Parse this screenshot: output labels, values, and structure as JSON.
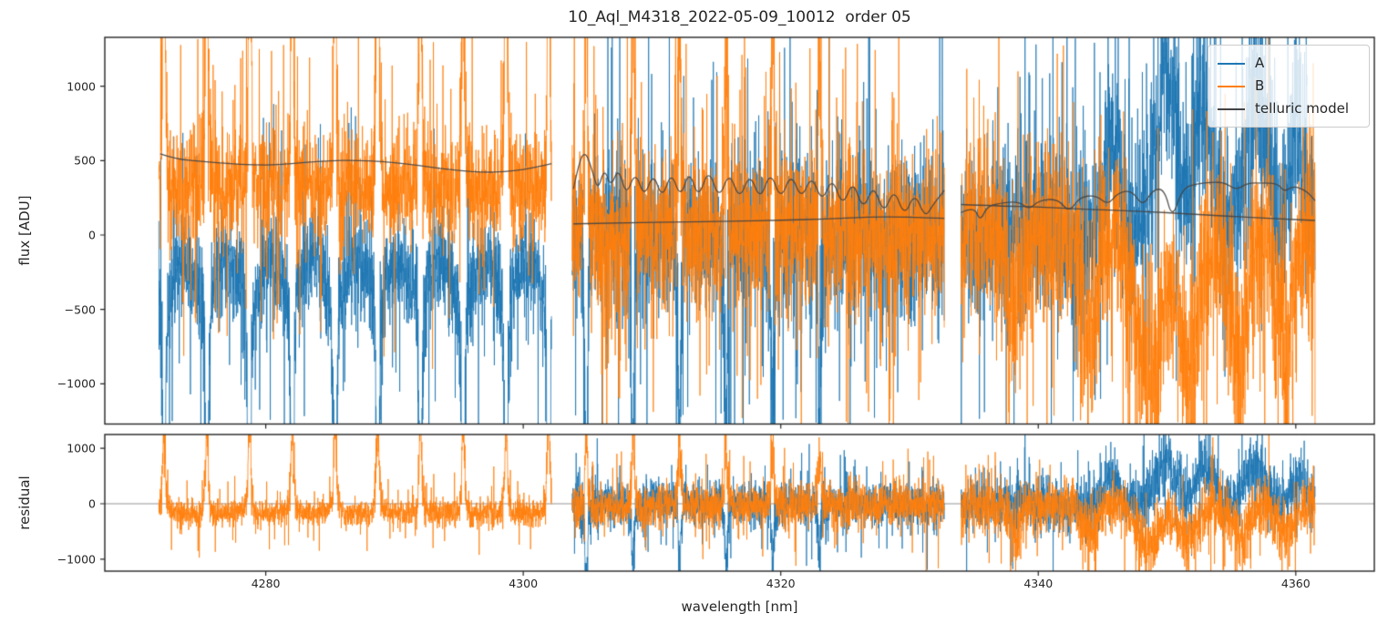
{
  "colors": {
    "A": "#1f77b4",
    "B": "#ff7f0e",
    "telluric": "#444444",
    "zero_line": "#888888",
    "axis": "#262626",
    "background": "#ffffff"
  },
  "legend": {
    "entries": [
      {
        "label": "A",
        "color_key": "A"
      },
      {
        "label": "B",
        "color_key": "B"
      },
      {
        "label": "telluric model",
        "color_key": "telluric"
      }
    ]
  },
  "chart_data": {
    "type": "line",
    "title": "10_Aql_M4318_2022-05-09_10012  order 05",
    "xlabel": "wavelength [nm]",
    "xlim": [
      4267.5,
      4366.1
    ],
    "x_ticks": [
      4280,
      4300,
      4320,
      4340,
      4360
    ],
    "grid": false,
    "legend_position": "upper right",
    "panels": [
      {
        "name": "flux",
        "ylabel": "flux [ADU]",
        "ylim": [
          -1270,
          1328
        ],
        "yticks": [
          {
            "v": 1000,
            "label": "1000"
          },
          {
            "v": 500,
            "label": "500"
          },
          {
            "v": 0,
            "label": "0"
          },
          {
            "v": -500,
            "label": "−500"
          },
          {
            "v": -1000,
            "label": "−1000"
          }
        ]
      },
      {
        "name": "residual",
        "ylabel": "residual",
        "ylim": [
          -1215,
          1248
        ],
        "yticks": [
          {
            "v": 1000,
            "label": "1000"
          },
          {
            "v": 0,
            "label": "0"
          },
          {
            "v": -1000,
            "label": "−1000"
          }
        ],
        "zero_line": true
      }
    ],
    "series": [
      {
        "name": "A",
        "color_key": "A",
        "kind": "noisy spectrum"
      },
      {
        "name": "B",
        "color_key": "B",
        "kind": "noisy spectrum"
      },
      {
        "name": "telluric model",
        "color_key": "telluric",
        "kind": "smooth model"
      }
    ],
    "segments": [
      {
        "x_range": [
          4271.7,
          4302.2
        ],
        "note": "emission comb: B spikes up (clipped), A spikes down; single telluric curve ~420-545 ADU; residuals only for B"
      },
      {
        "x_range": [
          4303.8,
          4332.7
        ],
        "note": "A and B overlap around 0; comb fades after ~4324; two telluric curves (oscillating upper, flat lower ~80-120)"
      },
      {
        "x_range": [
          4334.0,
          4361.5
        ],
        "note": "A and B overlap; broad blue positive bursts ~4346-4361, orange negative dips ~4338-4359; two telluric curves (notched rising upper, declining lower)"
      }
    ],
    "telluric_model": {
      "segment_1": [
        [
          4271.8,
          545
        ],
        [
          4273,
          510
        ],
        [
          4275,
          494
        ],
        [
          4277,
          480
        ],
        [
          4279,
          471
        ],
        [
          4281,
          471
        ],
        [
          4283,
          487
        ],
        [
          4285,
          500
        ],
        [
          4287,
          502
        ],
        [
          4289,
          494
        ],
        [
          4291,
          478
        ],
        [
          4293,
          454
        ],
        [
          4295,
          432
        ],
        [
          4297,
          421
        ],
        [
          4298.5,
          424
        ],
        [
          4300,
          440
        ],
        [
          4301.3,
          462
        ],
        [
          4302.2,
          480
        ]
      ],
      "segment_2_upper": [
        [
          4303.9,
          310
        ],
        [
          4304.4,
          520
        ],
        [
          4304.9,
          555
        ],
        [
          4305.4,
          420
        ],
        [
          4305.8,
          300
        ],
        [
          4306.3,
          450
        ],
        [
          4306.8,
          320
        ],
        [
          4307.4,
          455
        ],
        [
          4308,
          260
        ],
        [
          4308.7,
          430
        ],
        [
          4309.4,
          250
        ],
        [
          4310.1,
          420
        ],
        [
          4310.8,
          240
        ],
        [
          4311.5,
          430
        ],
        [
          4312.2,
          245
        ],
        [
          4312.9,
          438
        ],
        [
          4313.6,
          240
        ],
        [
          4314.4,
          452
        ],
        [
          4315.2,
          235
        ],
        [
          4316,
          430
        ],
        [
          4316.8,
          230
        ],
        [
          4317.6,
          420
        ],
        [
          4318.4,
          228
        ],
        [
          4319.2,
          434
        ],
        [
          4320,
          230
        ],
        [
          4320.8,
          420
        ],
        [
          4321.6,
          235
        ],
        [
          4322.4,
          408
        ],
        [
          4323.2,
          215
        ],
        [
          4324,
          393
        ],
        [
          4324.8,
          185
        ],
        [
          4325.6,
          373
        ],
        [
          4326.4,
          160
        ],
        [
          4327.2,
          345
        ],
        [
          4328,
          135
        ],
        [
          4328.8,
          318
        ],
        [
          4329.6,
          120
        ],
        [
          4330.4,
          288
        ],
        [
          4331.2,
          115
        ],
        [
          4331.8,
          200
        ],
        [
          4332.3,
          255
        ],
        [
          4332.7,
          300
        ]
      ],
      "segment_2_lower": [
        [
          4303.9,
          75
        ],
        [
          4308,
          82
        ],
        [
          4312,
          88
        ],
        [
          4316,
          92
        ],
        [
          4320,
          98
        ],
        [
          4324,
          110
        ],
        [
          4327,
          122
        ],
        [
          4330,
          120
        ],
        [
          4332.7,
          112
        ]
      ],
      "segment_3_upper": [
        [
          4334,
          150
        ],
        [
          4335,
          195
        ],
        [
          4335.5,
          90
        ],
        [
          4336,
          190
        ],
        [
          4337,
          215
        ],
        [
          4338.5,
          225
        ],
        [
          4339.3,
          170
        ],
        [
          4340,
          230
        ],
        [
          4341.5,
          245
        ],
        [
          4342.4,
          150
        ],
        [
          4343.2,
          255
        ],
        [
          4344.5,
          268
        ],
        [
          4345.4,
          200
        ],
        [
          4346.2,
          285
        ],
        [
          4347.3,
          300
        ],
        [
          4348.1,
          190
        ],
        [
          4348.9,
          305
        ],
        [
          4349.8,
          310
        ],
        [
          4350.4,
          105
        ],
        [
          4351.2,
          315
        ],
        [
          4352.3,
          345
        ],
        [
          4353.5,
          355
        ],
        [
          4354.5,
          352
        ],
        [
          4355.4,
          300
        ],
        [
          4356.2,
          350
        ],
        [
          4357.5,
          350
        ],
        [
          4358.6,
          345
        ],
        [
          4359.1,
          290
        ],
        [
          4359.8,
          330
        ],
        [
          4360.8,
          300
        ],
        [
          4361.5,
          230
        ]
      ],
      "segment_3_lower": [
        [
          4334,
          205
        ],
        [
          4337,
          195
        ],
        [
          4340,
          188
        ],
        [
          4344,
          172
        ],
        [
          4348,
          160
        ],
        [
          4352,
          140
        ],
        [
          4356,
          120
        ],
        [
          4359,
          107
        ],
        [
          4361.5,
          98
        ]
      ]
    },
    "noise_model": {
      "note": "A and B are dense photon-noise spectra; exact samples are stochastic. Parameters below reproduce the visible envelopes, comb peaks and bursts.",
      "seed": 7,
      "dx": 0.014,
      "segments": [
        {
          "x_range": [
            4271.7,
            4302.2
          ],
          "comb": {
            "start": 4272.1,
            "period": 3.32,
            "amps": [
              1600,
              1600,
              1600,
              1600,
              1600,
              1600,
              1600,
              1600,
              1600,
              1600
            ],
            "w": 0.13,
            "boost": 650,
            "bw": 0.3,
            "sign_A": -1,
            "sign_B": 1,
            "amp_scale_A": 1.1,
            "resid_scale": 0.78
          },
          "main": {
            "A": {
              "base": -380,
              "bulge": 200,
              "std": 165,
              "tail_p": 0.05,
              "tail_s": 450
            },
            "B": {
              "base": 250,
              "bulge": 90,
              "std": 175,
              "tail_p": 0.05,
              "tail_s": 430
            }
          },
          "resid": {
            "B": {
              "base": -165,
              "std": 120,
              "tail_p": 0.04,
              "tail_s": 300
            }
          }
        },
        {
          "x_range": [
            4303.8,
            4332.7
          ],
          "comb": {
            "start": 4304.9,
            "period": 3.62,
            "amps": [
              1500,
              1350,
              1250,
              1150,
              1000,
              850
            ],
            "w": 0.12,
            "boost": 520,
            "bw": 0.3,
            "sign_A": -1,
            "sign_B": 1,
            "resid_scale": 0.75
          },
          "main": {
            "A": {
              "base": 10,
              "std": 265,
              "tail_p": 0.07,
              "tail_s": 540
            },
            "B": {
              "base": -10,
              "std": 265,
              "tail_p": 0.07,
              "tail_s": 540
            }
          },
          "resid": {
            "A": {
              "base": 0,
              "std": 190,
              "tail_p": 0.05,
              "tail_s": 380
            },
            "B": {
              "base": -55,
              "std": 185,
              "tail_p": 0.05,
              "tail_s": 380
            }
          }
        },
        {
          "x_range": [
            4334.0,
            4361.5
          ],
          "features": {
            "A": [
              {
                "c": 4345.6,
                "w": 0.7,
                "amp": 380,
                "boost": 300,
                "bw": 0.9
              },
              {
                "c": 4349.9,
                "w": 1.1,
                "amp": 720,
                "boost": 430,
                "bw": 1.3
              },
              {
                "c": 4352.9,
                "w": 0.9,
                "amp": 560,
                "boost": 380,
                "bw": 1.1
              },
              {
                "c": 4356.9,
                "w": 1.1,
                "amp": 640,
                "boost": 400,
                "bw": 1.3
              },
              {
                "c": 4360.2,
                "w": 0.7,
                "amp": 430,
                "boost": 300,
                "bw": 0.9
              }
            ],
            "B": [
              {
                "c": 4338.2,
                "w": 0.6,
                "amp": -350,
                "boost": 260,
                "bw": 0.8
              },
              {
                "c": 4344.0,
                "w": 0.7,
                "amp": -480,
                "boost": 300,
                "bw": 0.9
              },
              {
                "c": 4348.6,
                "w": 1.2,
                "amp": -740,
                "boost": 430,
                "bw": 1.4
              },
              {
                "c": 4351.6,
                "w": 1.0,
                "amp": -600,
                "boost": 380,
                "bw": 1.2
              },
              {
                "c": 4355.6,
                "w": 1.0,
                "amp": -560,
                "boost": 360,
                "bw": 1.2
              },
              {
                "c": 4359.2,
                "w": 0.8,
                "amp": -430,
                "boost": 300,
                "bw": 1.0
              }
            ]
          },
          "resid_scale": 0.7,
          "main": {
            "A": {
              "base": 0,
              "std": 280,
              "tail_p": 0.07,
              "tail_s": 540
            },
            "B": {
              "base": 0,
              "std": 290,
              "tail_p": 0.07,
              "tail_s": 540
            }
          },
          "resid": {
            "A": {
              "base": 0,
              "std": 235,
              "tail_p": 0.05,
              "tail_s": 420
            },
            "B": {
              "base": -40,
              "std": 235,
              "tail_p": 0.05,
              "tail_s": 420
            }
          }
        }
      ]
    }
  }
}
